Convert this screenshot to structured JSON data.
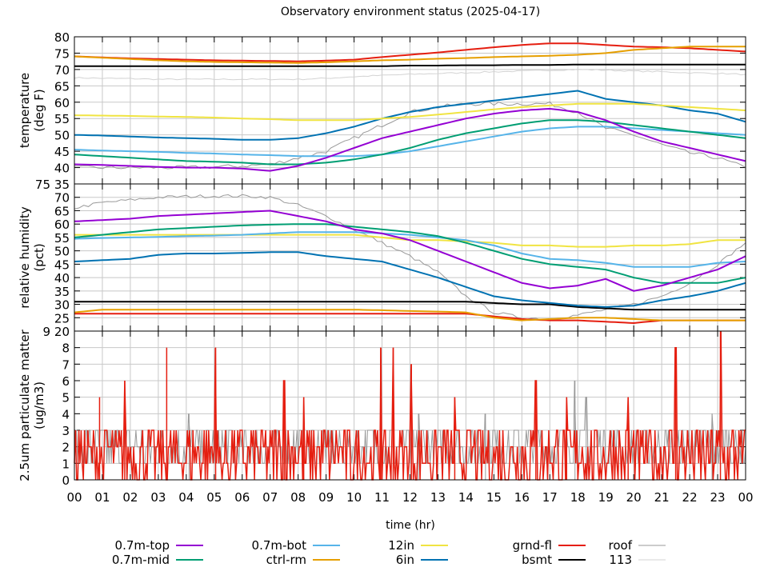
{
  "chart_data": [
    {
      "type": "line",
      "title": "Observatory environment status (2025-04-17)",
      "ylabel": [
        "temperature",
        "(deg F)"
      ],
      "ylim": [
        35,
        80
      ],
      "yticks": [
        35,
        40,
        45,
        50,
        55,
        60,
        65,
        70,
        75,
        80
      ],
      "x": [
        0,
        1,
        2,
        3,
        4,
        5,
        6,
        7,
        8,
        9,
        10,
        11,
        12,
        13,
        14,
        15,
        16,
        17,
        18,
        19,
        20,
        21,
        22,
        23,
        24
      ],
      "series": [
        {
          "name": "0.7m-top",
          "color": "#9400d3",
          "values": [
            41,
            40.8,
            40.5,
            40.2,
            40,
            40,
            39.7,
            39,
            40.5,
            43,
            46,
            49,
            51,
            53,
            55,
            56.5,
            57.5,
            58,
            57,
            54.5,
            51,
            48,
            46,
            44,
            42
          ]
        },
        {
          "name": "0.7m-mid",
          "color": "#009e73",
          "values": [
            44,
            43.5,
            43,
            42.5,
            42,
            41.8,
            41.5,
            41,
            41,
            41.5,
            42.5,
            44,
            46,
            48.5,
            50.5,
            52,
            53.5,
            54.5,
            54.5,
            54,
            53,
            52,
            51,
            50,
            49
          ]
        },
        {
          "name": "0.7m-bot",
          "color": "#56b4e9",
          "values": [
            45.5,
            45.2,
            45,
            44.8,
            44.5,
            44.3,
            44,
            43.8,
            43.5,
            43.5,
            43.5,
            44,
            45,
            46.5,
            48,
            49.5,
            51,
            52,
            52.5,
            52.5,
            52,
            51.5,
            51,
            50.5,
            50
          ]
        },
        {
          "name": "ctrl-rm",
          "color": "#e69f00",
          "values": [
            74,
            73.6,
            73.2,
            72.8,
            72.5,
            72.3,
            72.2,
            72.1,
            72,
            72.2,
            72.5,
            72.8,
            73,
            73.3,
            73.5,
            73.8,
            74,
            74.2,
            74.5,
            75,
            76,
            76.5,
            77,
            77,
            77
          ]
        },
        {
          "name": "12in",
          "color": "#f0e442",
          "values": [
            56,
            55.9,
            55.8,
            55.6,
            55.5,
            55.3,
            55,
            54.8,
            54.5,
            54.5,
            54.5,
            55,
            55.5,
            56.2,
            57,
            57.8,
            58.5,
            59,
            59.5,
            59.5,
            59.5,
            59,
            58.5,
            58,
            57.5
          ]
        },
        {
          "name": "6in",
          "color": "#0072b2",
          "values": [
            50,
            49.8,
            49.5,
            49.2,
            49,
            48.8,
            48.5,
            48.5,
            49,
            50.5,
            52.5,
            55,
            57,
            58.5,
            59.5,
            60.5,
            61.5,
            62.5,
            63.5,
            61,
            60,
            59,
            57.5,
            56.5,
            54
          ]
        },
        {
          "name": "grnd-fl",
          "color": "#e51e10",
          "values": [
            74,
            73.7,
            73.4,
            73.2,
            73,
            72.8,
            72.7,
            72.6,
            72.5,
            72.7,
            73,
            73.8,
            74.5,
            75.2,
            76,
            76.8,
            77.5,
            78,
            78,
            77.5,
            77,
            76.8,
            76.5,
            76,
            75.5
          ]
        },
        {
          "name": "bsmt",
          "color": "#000000",
          "values": [
            71,
            71,
            71,
            71,
            71,
            71,
            71,
            71,
            71,
            71,
            71,
            71,
            71.2,
            71.2,
            71.3,
            71.3,
            71.4,
            71.4,
            71.5,
            71.5,
            71.5,
            71.5,
            71.5,
            71.5,
            71.5
          ]
        },
        {
          "name": "roof",
          "color": "#999999",
          "values": [
            40,
            40,
            40,
            40,
            40,
            40.2,
            40.5,
            41,
            43,
            45,
            49,
            53,
            57,
            58.5,
            59.5,
            59.5,
            59.5,
            59.5,
            57,
            52,
            50,
            47,
            44.5,
            43,
            40
          ]
        },
        {
          "name": "113",
          "color": "#d3d3d3",
          "values": [
            67.5,
            67.3,
            67.2,
            67,
            67,
            67,
            67,
            67,
            67,
            67.3,
            67.8,
            68.2,
            68.5,
            68.8,
            69,
            69.3,
            69.5,
            69.8,
            70,
            69.8,
            69.5,
            69.3,
            69,
            68.8,
            68.5
          ]
        }
      ]
    },
    {
      "type": "line",
      "ylabel": [
        "relative humidity",
        "(pct)"
      ],
      "ylim": [
        20,
        75
      ],
      "yticks": [
        20,
        25,
        30,
        35,
        40,
        45,
        50,
        55,
        60,
        65,
        70,
        75
      ],
      "x": [
        0,
        1,
        2,
        3,
        4,
        5,
        6,
        7,
        8,
        9,
        10,
        11,
        12,
        13,
        14,
        15,
        16,
        17,
        18,
        19,
        20,
        21,
        22,
        23,
        24
      ],
      "series": [
        {
          "name": "0.7m-top",
          "color": "#9400d3",
          "values": [
            61,
            61.5,
            62,
            63,
            63.5,
            64,
            64.5,
            65,
            63,
            61,
            58,
            56.5,
            54,
            50,
            46,
            42,
            38,
            36,
            37,
            39.5,
            35,
            37,
            40,
            43,
            48
          ]
        },
        {
          "name": "0.7m-mid",
          "color": "#009e73",
          "values": [
            55,
            56,
            57,
            58,
            58.5,
            59,
            59.5,
            59.8,
            60,
            60,
            59,
            58,
            57,
            55.5,
            53,
            50,
            47,
            45,
            44,
            43,
            40,
            38,
            38,
            38,
            40
          ]
        },
        {
          "name": "0.7m-bot",
          "color": "#56b4e9",
          "values": [
            54.5,
            54.8,
            55,
            55.2,
            55.5,
            55.7,
            56,
            56.5,
            57,
            57,
            57,
            56.5,
            56,
            55,
            54,
            52,
            49,
            47,
            46.5,
            45.5,
            44,
            44,
            44,
            45.5,
            46
          ]
        },
        {
          "name": "ctrl-rm",
          "color": "#e69f00",
          "values": [
            27,
            28,
            28,
            28,
            28,
            28,
            28,
            28,
            28,
            28,
            28,
            27.8,
            27.5,
            27.3,
            27,
            25,
            24,
            24.5,
            25,
            25,
            24.5,
            24,
            24,
            24,
            24
          ]
        },
        {
          "name": "12in",
          "color": "#f0e442",
          "values": [
            56,
            56,
            56,
            56,
            56,
            56,
            56,
            56,
            56,
            56,
            56,
            55,
            54,
            54,
            53.5,
            53,
            52,
            52,
            51.5,
            51.5,
            52,
            52,
            52.5,
            54,
            54
          ]
        },
        {
          "name": "6in",
          "color": "#0072b2",
          "values": [
            46,
            46.5,
            47,
            48.5,
            49,
            49,
            49.2,
            49.5,
            49.5,
            48,
            47,
            46,
            43,
            40,
            36.5,
            33,
            31.5,
            30.5,
            29.5,
            29,
            29.5,
            31.5,
            33,
            35,
            38
          ]
        },
        {
          "name": "grnd-fl",
          "color": "#e51e10",
          "values": [
            26.5,
            26.5,
            26.5,
            26.5,
            26.5,
            26.5,
            26.5,
            26.5,
            26.5,
            26.5,
            26.5,
            26.5,
            26.5,
            26.5,
            26.5,
            25.5,
            24.5,
            24,
            24,
            23.5,
            23,
            24,
            24,
            24,
            24
          ]
        },
        {
          "name": "bsmt",
          "color": "#000000",
          "values": [
            31,
            31,
            31,
            31,
            31,
            31,
            31,
            31,
            31,
            31,
            31,
            31,
            31,
            31,
            31,
            30.5,
            30,
            30,
            29,
            28.5,
            28,
            28,
            28,
            28,
            28
          ]
        },
        {
          "name": "roof",
          "color": "#999999",
          "values": [
            66,
            68,
            69,
            70,
            70.3,
            70.5,
            70.5,
            70,
            67,
            63,
            58,
            53,
            48,
            42,
            33,
            27,
            25,
            24.5,
            26,
            28,
            30,
            33,
            38,
            45,
            53
          ]
        }
      ]
    },
    {
      "type": "line",
      "ylabel": [
        "2.5um particulate matter",
        "(ug/m3)"
      ],
      "ylim": [
        0,
        9
      ],
      "yticks": [
        0,
        1,
        2,
        3,
        4,
        5,
        6,
        7,
        8,
        9
      ],
      "xlabel": "time (hr)",
      "xticks": [
        "00",
        "01",
        "02",
        "03",
        "04",
        "05",
        "06",
        "07",
        "08",
        "09",
        "10",
        "11",
        "12",
        "13",
        "14",
        "15",
        "16",
        "17",
        "18",
        "19",
        "20",
        "21",
        "22",
        "23",
        "00"
      ],
      "series": [
        {
          "name": "grnd-fl",
          "color": "#e51e10",
          "typical_range": [
            0,
            3
          ],
          "spikes": [
            [
              0.9,
              5
            ],
            [
              1.8,
              6
            ],
            [
              3.3,
              8
            ],
            [
              5.05,
              8
            ],
            [
              7.5,
              6
            ],
            [
              10.95,
              8
            ],
            [
              11.4,
              8
            ],
            [
              12.05,
              7
            ],
            [
              16.5,
              6
            ],
            [
              17.6,
              5
            ],
            [
              21.5,
              8
            ],
            [
              23.1,
              9
            ],
            [
              8.2,
              5
            ],
            [
              13.6,
              5
            ],
            [
              19.8,
              5
            ]
          ]
        },
        {
          "name": "roof",
          "color": "#999999",
          "typical_range": [
            1,
            3
          ],
          "spikes": [
            [
              4.1,
              4
            ],
            [
              12.3,
              4
            ],
            [
              17.9,
              6
            ],
            [
              18.3,
              5
            ],
            [
              14.7,
              4
            ],
            [
              22.8,
              4
            ]
          ]
        }
      ]
    }
  ],
  "legend": {
    "placement": "bottom"
  }
}
